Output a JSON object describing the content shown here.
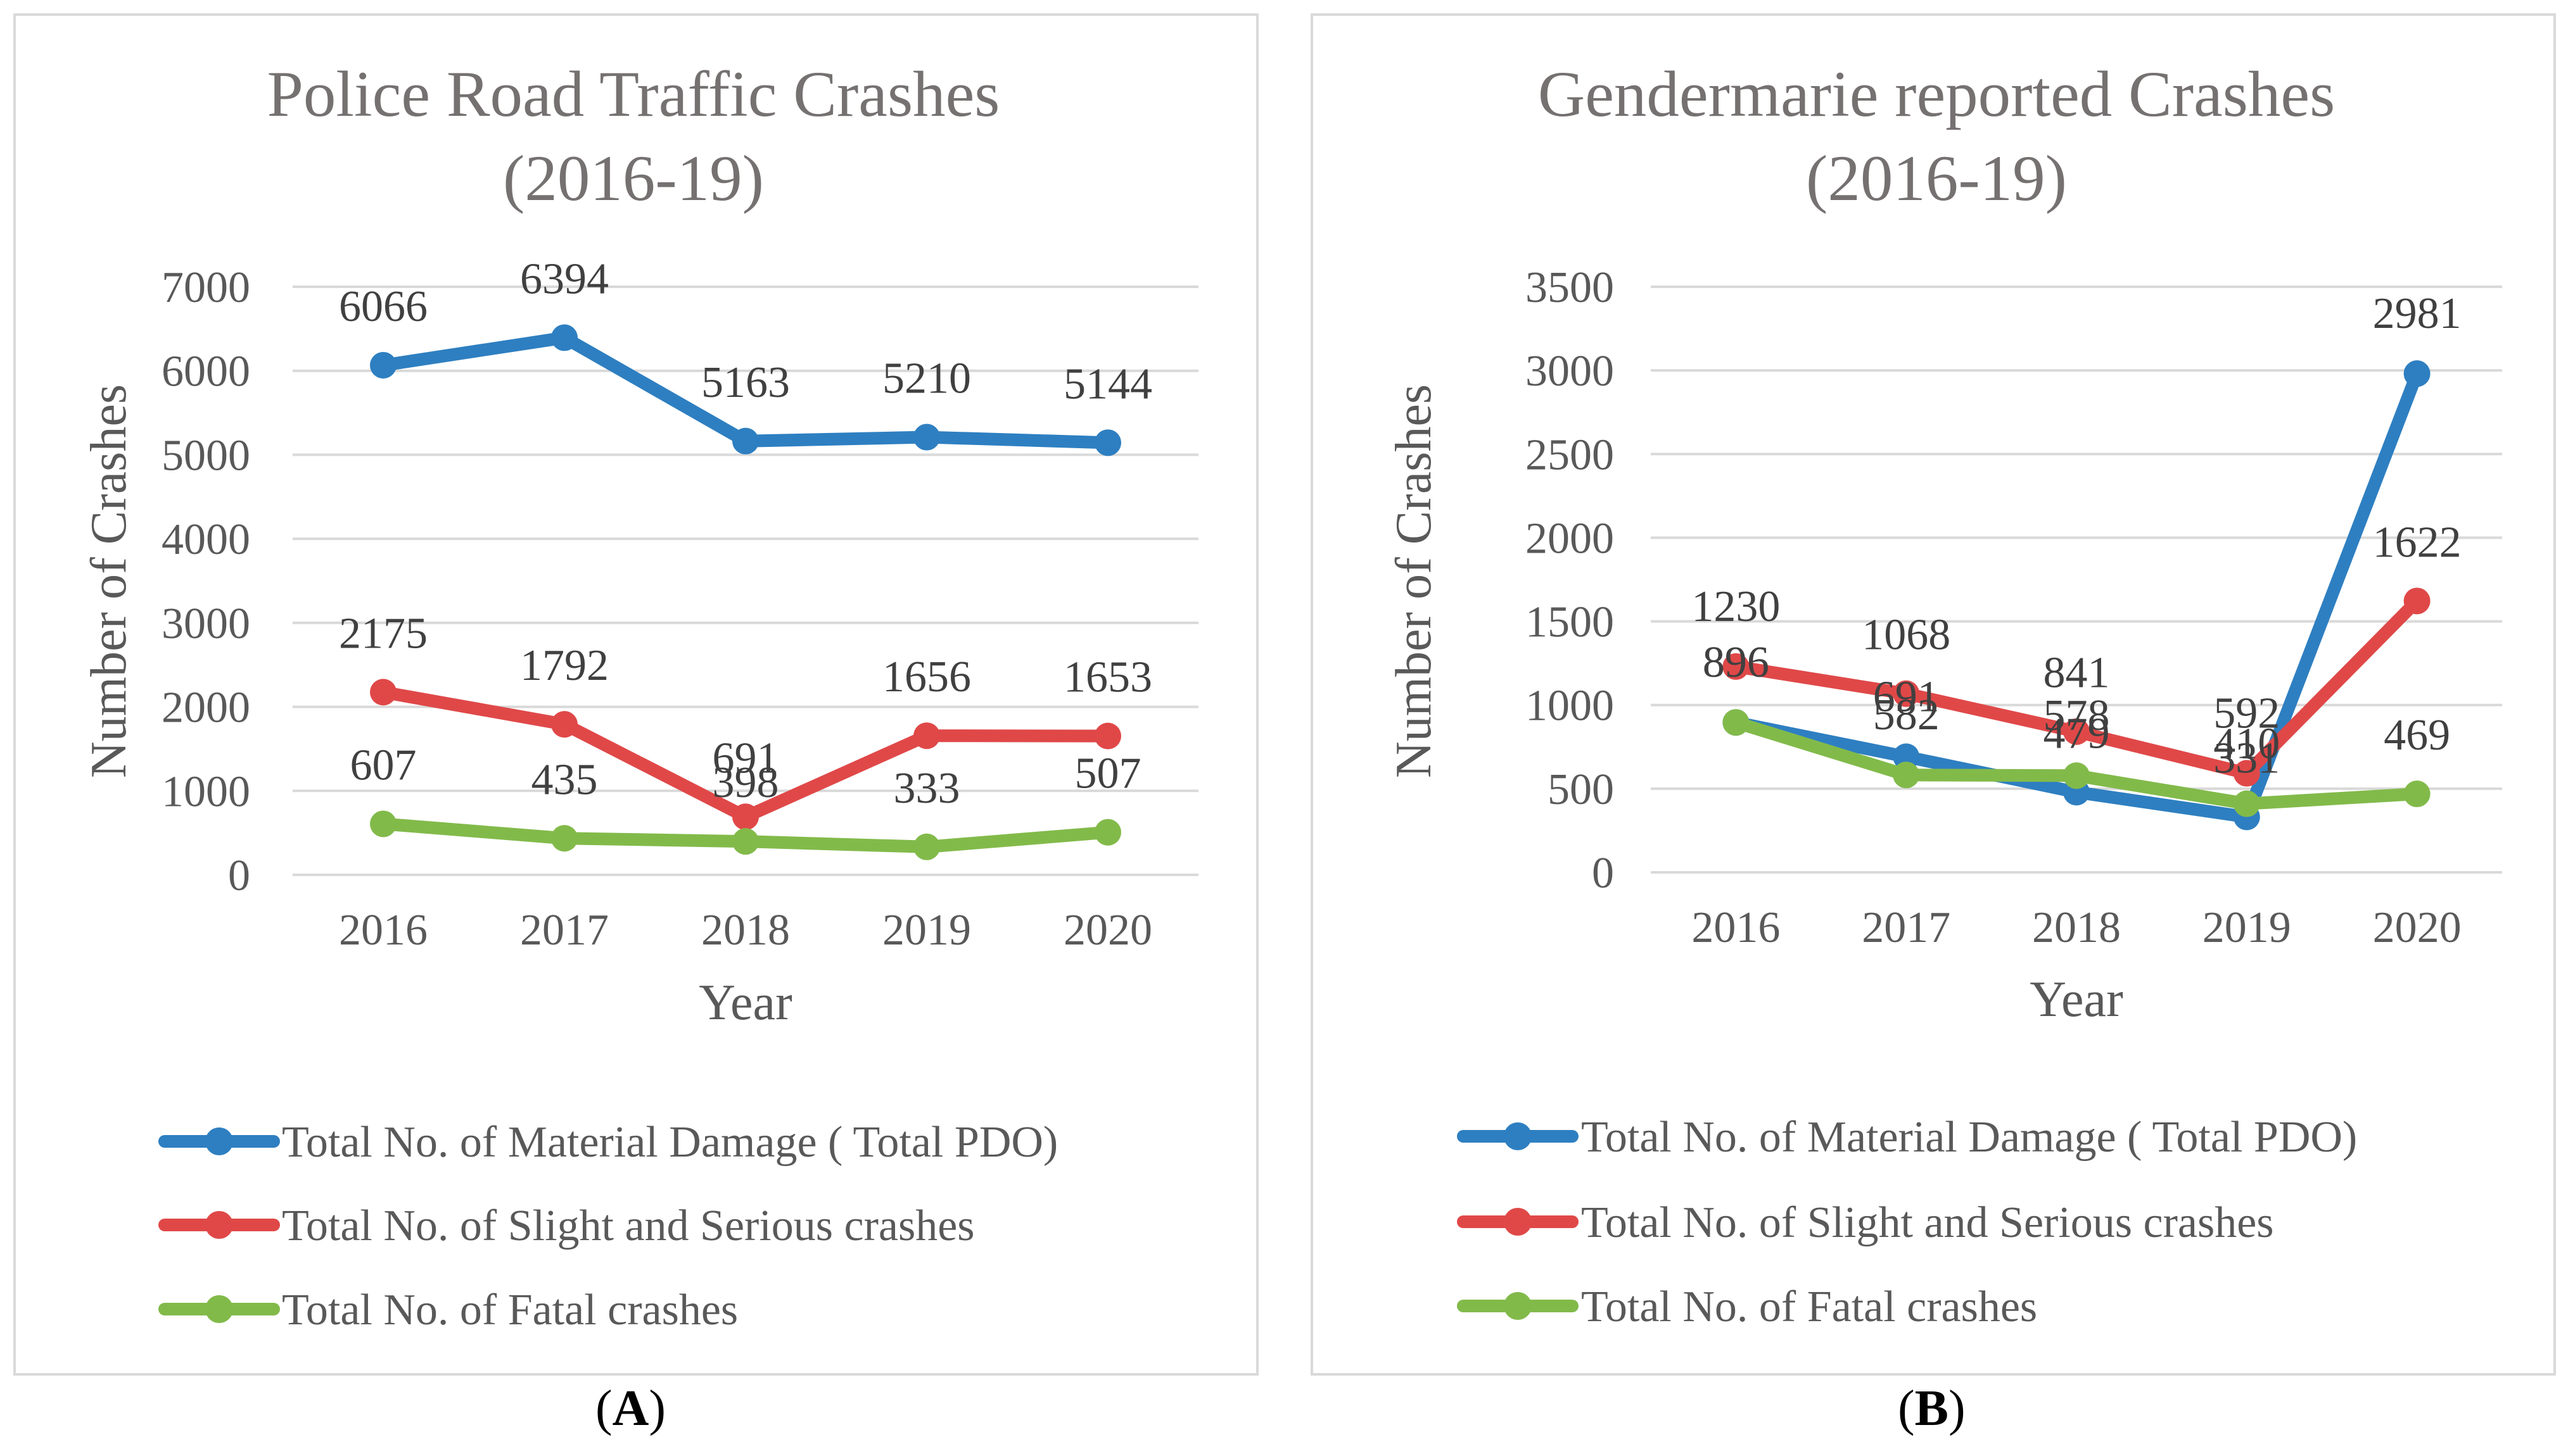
{
  "chart_data": [
    {
      "type": "line",
      "panel_label": "A",
      "title": "Police  Road Traffic Crashes (2016-19)",
      "title_lines": [
        "Police  Road Traffic Crashes",
        "(2016-19)"
      ],
      "xlabel": "Year",
      "ylabel": "Number of Crashes",
      "categories": [
        "2016",
        "2017",
        "2018",
        "2019",
        "2020"
      ],
      "ylim": [
        0,
        7000
      ],
      "yticks": [
        0,
        1000,
        2000,
        3000,
        4000,
        5000,
        6000,
        7000
      ],
      "grid": true,
      "legend": "bottom",
      "series": [
        {
          "name": "Total No. of Material Damage ( Total PDO)",
          "color": "#2e7fc1",
          "values": [
            6066,
            6394,
            5163,
            5210,
            5144
          ]
        },
        {
          "name": "Total No. of Slight and Serious crashes",
          "color": "#e04848",
          "values": [
            2175,
            1792,
            691,
            1656,
            1653
          ]
        },
        {
          "name": "Total No. of Fatal crashes",
          "color": "#82ba4a",
          "values": [
            607,
            435,
            398,
            333,
            507
          ]
        }
      ]
    },
    {
      "type": "line",
      "panel_label": "B",
      "title": "Gendermarie reported Crashes (2016-19)",
      "title_lines": [
        "Gendermarie reported Crashes",
        "(2016-19)"
      ],
      "xlabel": "Year",
      "ylabel": "Number of Crashes",
      "categories": [
        "2016",
        "2017",
        "2018",
        "2019",
        "2020"
      ],
      "ylim": [
        0,
        3500
      ],
      "yticks": [
        0,
        500,
        1000,
        1500,
        2000,
        2500,
        3000,
        3500
      ],
      "grid": true,
      "legend": "bottom",
      "series": [
        {
          "name": "Total No. of Material Damage ( Total PDO)",
          "color": "#2e7fc1",
          "values": [
            896,
            691,
            479,
            331,
            2981
          ]
        },
        {
          "name": "Total No. of Slight and Serious crashes",
          "color": "#e04848",
          "values": [
            1230,
            1068,
            841,
            592,
            1622
          ]
        },
        {
          "name": "Total No. of Fatal crashes",
          "color": "#82ba4a",
          "values": [
            896,
            582,
            578,
            410,
            469
          ]
        }
      ]
    }
  ]
}
